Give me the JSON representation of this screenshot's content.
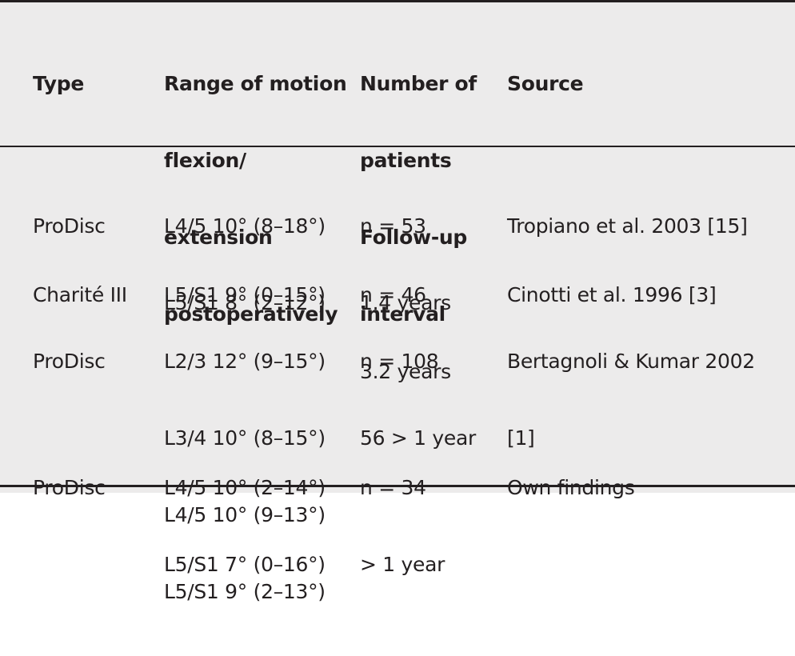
{
  "table": {
    "headers": [
      {
        "lines": [
          "Type"
        ]
      },
      {
        "lines": [
          "Range of motion",
          "flexion/",
          "extension",
          "postoperatively"
        ]
      },
      {
        "lines": [
          "Number of",
          "patients",
          "Follow-up",
          "interval"
        ]
      },
      {
        "lines": [
          "Source"
        ]
      }
    ],
    "rows": [
      {
        "type": [
          "ProDisc"
        ],
        "rom": [
          "L4/5 10° (8–18°)",
          "L5/S1 8° (2–12°)"
        ],
        "num": [
          "n = 53",
          "1.4 years"
        ],
        "src": [
          "Tropiano et al. 2003 [15]"
        ]
      },
      {
        "type": [
          "Charité III"
        ],
        "rom": [
          "L5/S1 9° (0–15°)"
        ],
        "num": [
          "n = 46",
          "3.2 years"
        ],
        "src": [
          "Cinotti et al. 1996 [3]"
        ]
      },
      {
        "type": [
          "ProDisc"
        ],
        "rom": [
          "L2/3 12° (9–15°)",
          "L3/4 10° (8–15°)",
          "L4/5 10° (9–13°)",
          "L5/S1 9° (2–13°)"
        ],
        "num": [
          "n = 108",
          "56 > 1 year"
        ],
        "src": [
          "Bertagnoli & Kumar 2002",
          "[1]"
        ]
      },
      {
        "type": [
          "ProDisc"
        ],
        "rom": [
          "L4/5 10° (2–14°)",
          "L5/S1 7° (0–16°)"
        ],
        "num": [
          "n = 34",
          "> 1 year"
        ],
        "src": [
          "Own findings"
        ]
      }
    ]
  }
}
